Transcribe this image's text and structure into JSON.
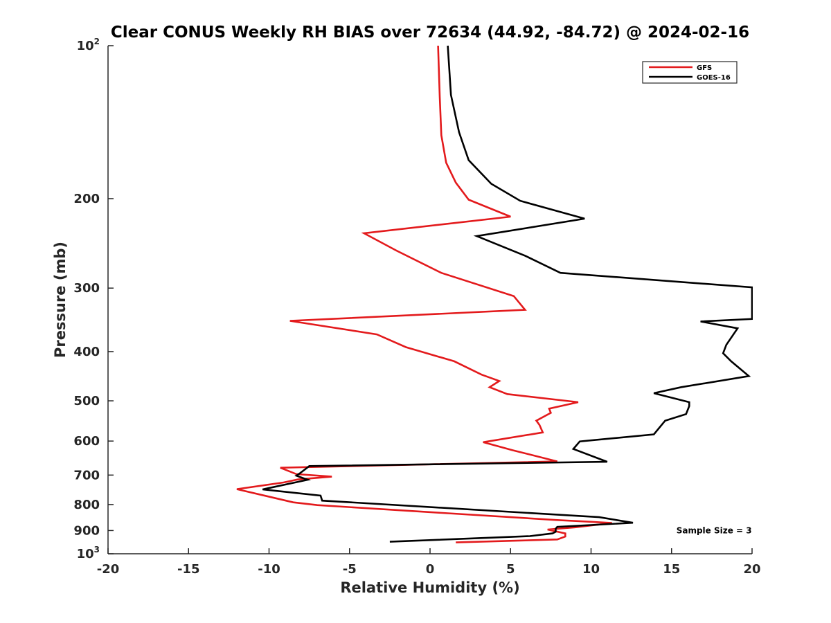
{
  "chart_data": {
    "type": "line",
    "title": "Clear CONUS Weekly RH BIAS over 72634 (44.92, -84.72) @ 2024-02-16",
    "xlabel": "Relative Humidity (%)",
    "ylabel": "Pressure (mb)",
    "xlim": [
      -20,
      20
    ],
    "ylim": [
      100,
      1000
    ],
    "yscale": "log",
    "y_reversed": true,
    "grid": false,
    "legend_position": "top-right",
    "xticks": [
      {
        "value": -20,
        "label": "-20"
      },
      {
        "value": -15,
        "label": "-15"
      },
      {
        "value": -10,
        "label": "-10"
      },
      {
        "value": -5,
        "label": "-5"
      },
      {
        "value": 0,
        "label": "0"
      },
      {
        "value": 5,
        "label": "5"
      },
      {
        "value": 10,
        "label": "10"
      },
      {
        "value": 15,
        "label": "15"
      },
      {
        "value": 20,
        "label": "20"
      }
    ],
    "yticks": [
      {
        "value": 100,
        "label": "10",
        "sup": "2"
      },
      {
        "value": 200,
        "label": "200"
      },
      {
        "value": 300,
        "label": "300"
      },
      {
        "value": 400,
        "label": "400"
      },
      {
        "value": 500,
        "label": "500"
      },
      {
        "value": 600,
        "label": "600"
      },
      {
        "value": 700,
        "label": "700"
      },
      {
        "value": 800,
        "label": "800"
      },
      {
        "value": 900,
        "label": "900"
      },
      {
        "value": 1000,
        "label": "10",
        "sup": "3"
      }
    ],
    "series": [
      {
        "name": "GFS",
        "color": "#e31a1c",
        "points": [
          [
            0.5,
            100
          ],
          [
            0.6,
            126
          ],
          [
            0.7,
            150
          ],
          [
            1.0,
            170
          ],
          [
            1.6,
            186
          ],
          [
            2.4,
            201
          ],
          [
            5.0,
            217
          ],
          [
            -4.1,
            234
          ],
          [
            -2.1,
            253
          ],
          [
            0.7,
            280
          ],
          [
            5.2,
            311
          ],
          [
            5.9,
            331
          ],
          [
            -8.7,
            348
          ],
          [
            -3.3,
            370
          ],
          [
            -1.5,
            392
          ],
          [
            1.5,
            418
          ],
          [
            3.2,
            444
          ],
          [
            4.3,
            457
          ],
          [
            3.7,
            470
          ],
          [
            4.8,
            485
          ],
          [
            9.2,
            503
          ],
          [
            7.4,
            518
          ],
          [
            7.5,
            528
          ],
          [
            6.6,
            547
          ],
          [
            6.8,
            558
          ],
          [
            7.0,
            577
          ],
          [
            3.3,
            603
          ],
          [
            5.1,
            625
          ],
          [
            7.9,
            658
          ],
          [
            -9.3,
            677
          ],
          [
            -8.3,
            697
          ],
          [
            -6.1,
            705
          ],
          [
            -8.2,
            714
          ],
          [
            -9.1,
            724
          ],
          [
            -12.0,
            746
          ],
          [
            -8.5,
            792
          ],
          [
            -7.0,
            802
          ],
          [
            7.8,
            858
          ],
          [
            10.0,
            865
          ],
          [
            11.3,
            870
          ],
          [
            9.0,
            887
          ],
          [
            7.3,
            896
          ],
          [
            8.4,
            912
          ],
          [
            8.4,
            925
          ],
          [
            7.9,
            937
          ],
          [
            1.6,
            950
          ]
        ]
      },
      {
        "name": "GOES-16",
        "color": "#000000",
        "points": [
          [
            1.1,
            100
          ],
          [
            1.3,
            125
          ],
          [
            1.8,
            148
          ],
          [
            2.4,
            168
          ],
          [
            3.8,
            187
          ],
          [
            5.6,
            202
          ],
          [
            9.6,
            219
          ],
          [
            2.9,
            237
          ],
          [
            5.9,
            259
          ],
          [
            8.1,
            280
          ],
          [
            20.0,
            299
          ],
          [
            20.0,
            345
          ],
          [
            16.8,
            349
          ],
          [
            19.1,
            360
          ],
          [
            18.4,
            388
          ],
          [
            18.2,
            403
          ],
          [
            18.7,
            418
          ],
          [
            19.8,
            447
          ],
          [
            15.6,
            470
          ],
          [
            13.9,
            483
          ],
          [
            16.1,
            503
          ],
          [
            16.1,
            512
          ],
          [
            15.9,
            531
          ],
          [
            14.6,
            547
          ],
          [
            13.9,
            582
          ],
          [
            9.3,
            601
          ],
          [
            8.9,
            622
          ],
          [
            11.0,
            659
          ],
          [
            -7.5,
            672
          ],
          [
            -8.1,
            695
          ],
          [
            -8.3,
            702
          ],
          [
            -7.6,
            715
          ],
          [
            -10.4,
            747
          ],
          [
            -6.8,
            768
          ],
          [
            -6.7,
            786
          ],
          [
            10.5,
            847
          ],
          [
            12.6,
            869
          ],
          [
            7.9,
            885
          ],
          [
            7.8,
            893
          ],
          [
            7.8,
            905
          ],
          [
            7.6,
            912
          ],
          [
            6.2,
            923
          ],
          [
            -2.5,
            947
          ]
        ]
      }
    ],
    "annotations": [
      {
        "text": "Sample Size = 3",
        "x": 15.3,
        "y": 900
      }
    ]
  }
}
